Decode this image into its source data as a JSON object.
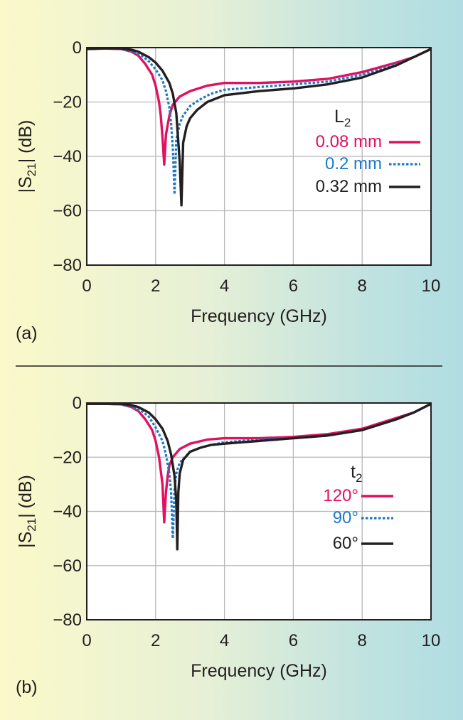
{
  "chart_data": [
    {
      "type": "line",
      "panel_label": "(a)",
      "xlabel": "Frequency (GHz)",
      "ylabel_main": "|S",
      "ylabel_sub": "21",
      "ylabel_tail": "| (dB)",
      "xlim": [
        0,
        10
      ],
      "ylim": [
        -80,
        0
      ],
      "xticks": [
        "0",
        "2",
        "4",
        "6",
        "8",
        "10"
      ],
      "yticks": [
        "0",
        "−20",
        "−40",
        "−60",
        "−80"
      ],
      "grid": true,
      "legend_title_main": "L",
      "legend_title_sub": "2",
      "legend_position": "right",
      "series": [
        {
          "name": "0.08 mm",
          "color": "#e0115f",
          "dash": "solid",
          "x": [
            0,
            0.5,
            1.0,
            1.3,
            1.5,
            1.7,
            1.9,
            2.0,
            2.1,
            2.15,
            2.2,
            2.25,
            2.3,
            2.4,
            2.5,
            2.7,
            3.0,
            3.5,
            4.0,
            5.0,
            6.0,
            7.0,
            8.0,
            9.0,
            9.5,
            10.0
          ],
          "y": [
            -0.5,
            -0.3,
            -0.5,
            -1.5,
            -3,
            -6,
            -10,
            -14,
            -20,
            -25,
            -33,
            -43,
            -32,
            -25,
            -21,
            -18,
            -16,
            -14,
            -13,
            -13,
            -12.5,
            -11.5,
            -9,
            -5.5,
            -3.5,
            -0.5
          ]
        },
        {
          "name": "0.2 mm",
          "color": "#1f78c8",
          "dash": "dotted",
          "x": [
            0,
            0.5,
            1.0,
            1.3,
            1.6,
            1.8,
            2.0,
            2.2,
            2.3,
            2.4,
            2.45,
            2.5,
            2.55,
            2.6,
            2.7,
            2.8,
            3.0,
            3.3,
            3.6,
            4.0,
            5.0,
            6.0,
            7.0,
            8.0,
            9.0,
            9.5,
            10.0
          ],
          "y": [
            -0.5,
            -0.3,
            -0.5,
            -1.5,
            -3,
            -5,
            -8,
            -12,
            -16,
            -22,
            -28,
            -37,
            -54,
            -34,
            -28,
            -25,
            -21.5,
            -19,
            -17,
            -15.5,
            -14.5,
            -13.5,
            -12.5,
            -10,
            -6,
            -3.5,
            -0.5
          ]
        },
        {
          "name": "0.32 mm",
          "color": "#231f20",
          "dash": "solid",
          "x": [
            0,
            0.5,
            1.0,
            1.3,
            1.5,
            1.8,
            2.0,
            2.2,
            2.4,
            2.5,
            2.6,
            2.65,
            2.7,
            2.75,
            2.8,
            2.9,
            3.0,
            3.2,
            3.5,
            4.0,
            5.0,
            6.0,
            7.0,
            8.0,
            9.0,
            9.5,
            10.0
          ],
          "y": [
            -0.5,
            -0.3,
            -0.3,
            -0.8,
            -1.5,
            -3.5,
            -5.5,
            -8.5,
            -13,
            -17,
            -24,
            -33,
            -42,
            -58,
            -35,
            -29,
            -26,
            -23,
            -20,
            -17.5,
            -16,
            -15,
            -13.5,
            -11,
            -6.5,
            -3.5,
            -0.5
          ]
        }
      ]
    },
    {
      "type": "line",
      "panel_label": "(b)",
      "xlabel": "Frequency (GHz)",
      "ylabel_main": "|S",
      "ylabel_sub": "21",
      "ylabel_tail": "| (dB)",
      "xlim": [
        0,
        10
      ],
      "ylim": [
        -80,
        0
      ],
      "xticks": [
        "0",
        "2",
        "4",
        "6",
        "8",
        "10"
      ],
      "yticks": [
        "0",
        "−20",
        "−40",
        "−60",
        "−80"
      ],
      "grid": true,
      "legend_title_main": "t",
      "legend_title_sub": "2",
      "legend_position": "right",
      "series": [
        {
          "name": "120°",
          "color": "#e0115f",
          "dash": "solid",
          "x": [
            0,
            0.5,
            1.0,
            1.3,
            1.5,
            1.7,
            1.9,
            2.0,
            2.1,
            2.2,
            2.25,
            2.3,
            2.35,
            2.4,
            2.5,
            2.7,
            3.0,
            3.5,
            4.0,
            5.0,
            6.0,
            7.0,
            8.0,
            9.0,
            9.5,
            10.0
          ],
          "y": [
            -0.3,
            -0.3,
            -0.5,
            -1.5,
            -3,
            -6,
            -10,
            -14,
            -20,
            -30,
            -44,
            -33,
            -27,
            -23,
            -20,
            -17,
            -15,
            -13.5,
            -13,
            -13,
            -12.5,
            -11.5,
            -9.5,
            -5.5,
            -3.5,
            -0.3
          ]
        },
        {
          "name": "90°",
          "color": "#1f78c8",
          "dash": "dotted",
          "x": [
            0,
            0.5,
            1.0,
            1.3,
            1.6,
            1.8,
            2.0,
            2.2,
            2.3,
            2.4,
            2.45,
            2.5,
            2.55,
            2.6,
            2.7,
            3.0,
            3.3,
            3.6,
            4.0,
            5.0,
            6.0,
            7.0,
            8.0,
            9.0,
            9.5,
            10.0
          ],
          "y": [
            -0.3,
            -0.3,
            -0.5,
            -1.5,
            -3,
            -5,
            -9,
            -14,
            -19,
            -26,
            -33,
            -50,
            -32,
            -26,
            -22,
            -18,
            -16.5,
            -15.5,
            -14.5,
            -13.5,
            -13,
            -12,
            -10,
            -6,
            -3.5,
            -0.3
          ]
        },
        {
          "name": "60°",
          "color": "#231f20",
          "dash": "solid",
          "x": [
            0,
            0.5,
            1.0,
            1.3,
            1.5,
            1.8,
            2.0,
            2.2,
            2.35,
            2.45,
            2.55,
            2.6,
            2.63,
            2.66,
            2.7,
            2.8,
            3.0,
            3.3,
            3.6,
            4.0,
            5.0,
            6.0,
            7.0,
            8.0,
            9.0,
            9.5,
            10.0
          ],
          "y": [
            -0.3,
            -0.3,
            -0.3,
            -0.8,
            -1.5,
            -3.5,
            -6,
            -9.5,
            -14,
            -19,
            -27,
            -36,
            -54,
            -33,
            -26,
            -21,
            -18,
            -16.5,
            -15.5,
            -15,
            -14,
            -13,
            -12,
            -10,
            -6,
            -3.5,
            -0.3
          ]
        }
      ]
    }
  ]
}
